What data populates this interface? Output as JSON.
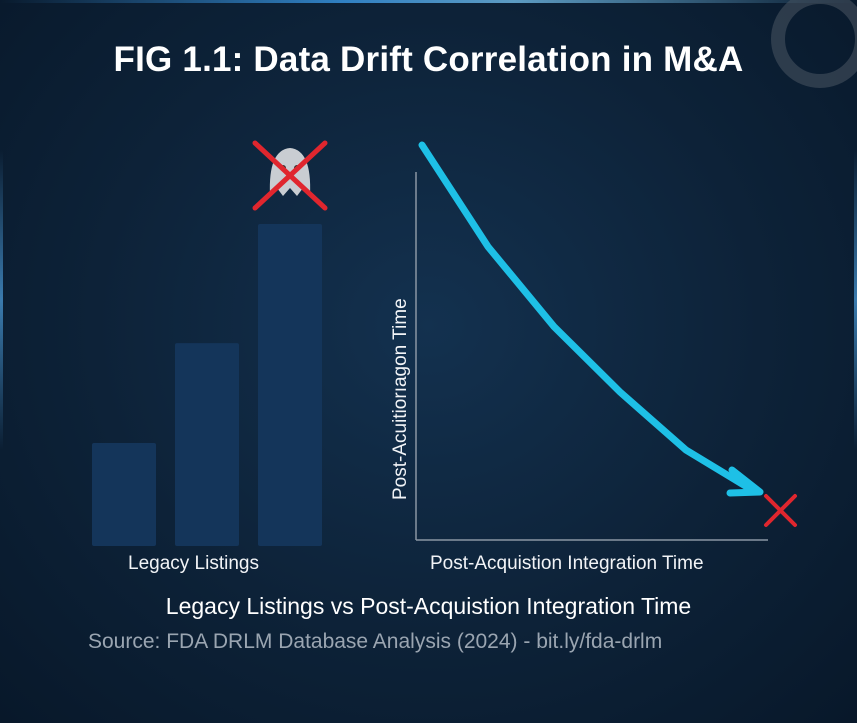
{
  "title": "FIG 1.1: Data Drift Correlation in M&A",
  "chart_data": [
    {
      "type": "bar",
      "categories": [
        "",
        "",
        ""
      ],
      "values": [
        32,
        63,
        100
      ],
      "xlabel": "Legacy Listings",
      "ylabel": "",
      "annotation": "ghost-icon crossed out above tallest bar",
      "bar_color": "#14355a"
    },
    {
      "type": "line",
      "x": [
        0,
        0.2,
        0.4,
        0.6,
        0.8,
        1.0
      ],
      "y": [
        1.0,
        0.72,
        0.5,
        0.32,
        0.16,
        0.05
      ],
      "xlabel": "Post-Acquistion Integration Time",
      "ylabel": "Post-Acuitiorıagon Time",
      "line_color": "#1ec0e6",
      "annotation": "red x at end of arrow"
    }
  ],
  "subtitle": "Legacy Listings vs Post-Acquistion Integration Time",
  "source": "Source: FDA DRLM Database Analysis (2024) - bit.ly/fda-drlm",
  "colors": {
    "background": "#0d2238",
    "accent": "#1ec0e6",
    "cross": "#e0262e"
  }
}
